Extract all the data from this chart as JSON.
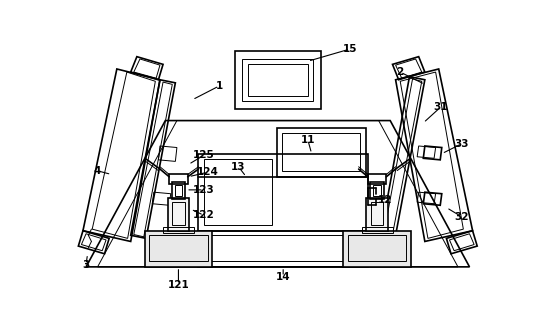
{
  "fig_width": 5.42,
  "fig_height": 3.31,
  "dpi": 100,
  "bg_color": "#ffffff",
  "lc": "#000000",
  "lw": 1.2,
  "tlw": 0.7,
  "xlim": [
    0,
    542
  ],
  "ylim": [
    0,
    331
  ]
}
